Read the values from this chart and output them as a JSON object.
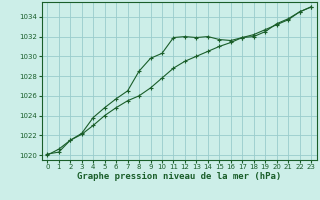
{
  "title": "Graphe pression niveau de la mer (hPa)",
  "background_color": "#cceee8",
  "grid_color": "#99cccc",
  "line_color": "#1a5e2a",
  "marker_color": "#1a5e2a",
  "xlim": [
    -0.5,
    23.5
  ],
  "ylim": [
    1019.5,
    1035.5
  ],
  "yticks": [
    1020,
    1022,
    1024,
    1026,
    1028,
    1030,
    1032,
    1034
  ],
  "xticks": [
    0,
    1,
    2,
    3,
    4,
    5,
    6,
    7,
    8,
    9,
    10,
    11,
    12,
    13,
    14,
    15,
    16,
    17,
    18,
    19,
    20,
    21,
    22,
    23
  ],
  "series1": [
    1020.0,
    1020.6,
    1021.5,
    1022.2,
    1023.8,
    1024.8,
    1025.7,
    1026.5,
    1028.5,
    1029.8,
    1030.3,
    1031.9,
    1032.0,
    1031.9,
    1032.0,
    1031.7,
    1031.6,
    1031.9,
    1032.0,
    1032.5,
    1033.3,
    1033.8,
    1034.5,
    1035.0
  ],
  "series2": [
    1020.1,
    1020.3,
    1021.5,
    1022.1,
    1023.0,
    1024.0,
    1024.8,
    1025.5,
    1026.0,
    1026.8,
    1027.8,
    1028.8,
    1029.5,
    1030.0,
    1030.5,
    1031.0,
    1031.4,
    1031.9,
    1032.2,
    1032.7,
    1033.2,
    1033.7,
    1034.5,
    1035.0
  ],
  "ylabel_fontsize": 5.5,
  "xlabel_fontsize": 6.5,
  "tick_fontsize": 5.0
}
